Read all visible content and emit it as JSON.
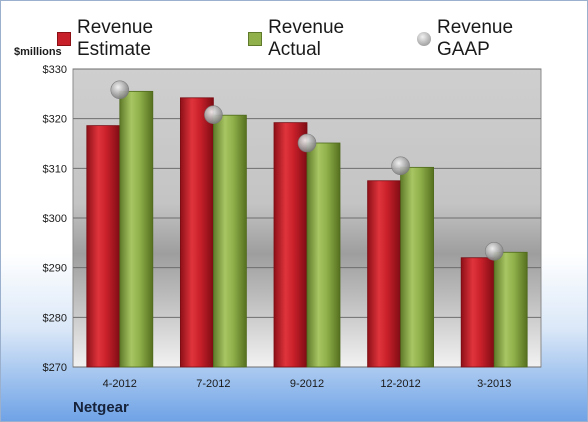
{
  "chart_data": {
    "type": "bar",
    "categories": [
      "4-2012",
      "7-2012",
      "9-2012",
      "12-2012",
      "3-2013"
    ],
    "series": [
      {
        "name": "Revenue Estimate",
        "values": [
          318.6,
          324.2,
          319.2,
          307.5,
          292.0
        ],
        "color": "#c8202a"
      },
      {
        "name": "Revenue Actual",
        "values": [
          325.5,
          320.7,
          315.1,
          310.2,
          293.1
        ],
        "color": "#8fb04a"
      },
      {
        "name": "Revenue GAAP",
        "values": [
          325.8,
          320.8,
          315.1,
          310.5,
          293.3
        ],
        "marker": "sphere",
        "color": "#a6a6a6"
      }
    ],
    "ylim": [
      270,
      330
    ],
    "yticks": [
      270,
      280,
      290,
      300,
      310,
      320,
      330
    ],
    "ytick_labels": [
      "$270",
      "$280",
      "$290",
      "$300",
      "$310",
      "$320",
      "$330"
    ],
    "ylabel": "$millions",
    "grid": true,
    "legend": "top"
  },
  "footer": {
    "company": "Netgear"
  }
}
